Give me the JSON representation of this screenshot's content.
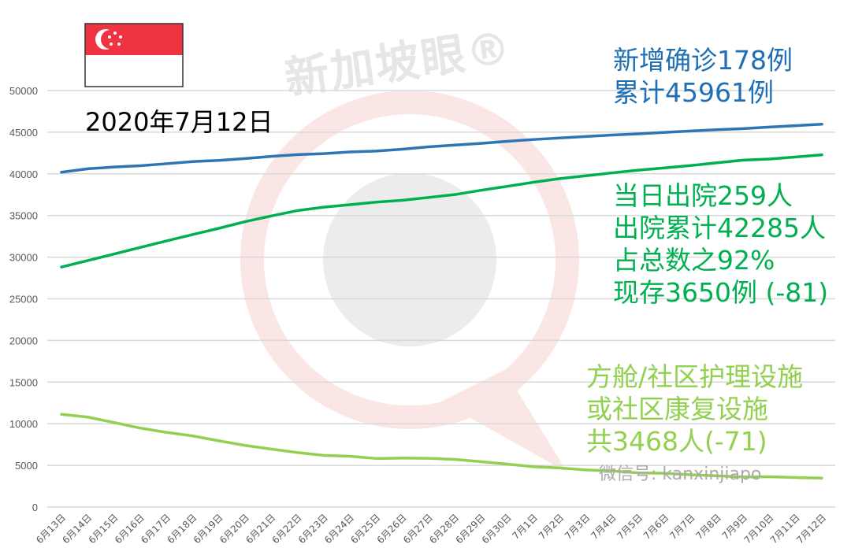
{
  "watermark": "新加坡眼®",
  "wechat_id": "微信号: kanxinjiapo",
  "date_label": "2020年7月12日",
  "colors": {
    "cases": "#2e75b6",
    "discharged": "#00b050",
    "facilities": "#92d050",
    "flag_red": "#ef3340"
  },
  "annotations": {
    "cases": [
      "新增确诊178例",
      "累计45961例"
    ],
    "discharged": [
      "当日出院259人",
      "出院累计42285人",
      "占总数之92%",
      "现存3650例 (-81)"
    ],
    "facilities": [
      "方舱/社区护理设施",
      "或社区康复设施",
      "共3468人(-71)"
    ]
  },
  "chart_data": {
    "type": "line",
    "title": "",
    "xlabel": "",
    "ylabel": "",
    "ylim": [
      0,
      50000
    ],
    "yticks": [
      0,
      5000,
      10000,
      15000,
      20000,
      25000,
      30000,
      35000,
      40000,
      45000,
      50000
    ],
    "grid": true,
    "categories": [
      "6月13日",
      "6月14日",
      "6月15日",
      "6月16日",
      "6月17日",
      "6月18日",
      "6月19日",
      "6月20日",
      "6月21日",
      "6月22日",
      "6月23日",
      "6月24日",
      "6月25日",
      "6月26日",
      "6月27日",
      "6月28日",
      "6月29日",
      "6月30日",
      "7月1日",
      "7月2日",
      "7月3日",
      "7月4日",
      "7月5日",
      "7月6日",
      "7月7日",
      "7月8日",
      "7月9日",
      "7月10日",
      "7月11日",
      "7月12日"
    ],
    "series": [
      {
        "key": "cases",
        "values": [
          40197,
          40604,
          40818,
          40969,
          41216,
          41473,
          41615,
          41833,
          42095,
          42313,
          42432,
          42623,
          42736,
          42955,
          43246,
          43459,
          43661,
          43907,
          44122,
          44310,
          44479,
          44664,
          44800,
          44983,
          45140,
          45298,
          45423,
          45613,
          45783,
          45961
        ]
      },
      {
        "key": "discharged",
        "values": [
          28808,
          29589,
          30366,
          31163,
          31938,
          32712,
          33459,
          34257,
          34942,
          35590,
          35995,
          36299,
          36604,
          36825,
          37163,
          37508,
          38025,
          38500,
          38990,
          39429,
          39769,
          40117,
          40441,
          40717,
          41002,
          41323,
          41645,
          41780,
          42026,
          42285
        ]
      },
      {
        "key": "facilities",
        "values": [
          11130,
          10800,
          10150,
          9480,
          8970,
          8540,
          7950,
          7400,
          6960,
          6540,
          6200,
          6100,
          5830,
          5880,
          5850,
          5720,
          5450,
          5150,
          4840,
          4690,
          4450,
          4330,
          4100,
          4050,
          3880,
          3750,
          3620,
          3640,
          3540,
          3468
        ]
      }
    ]
  }
}
